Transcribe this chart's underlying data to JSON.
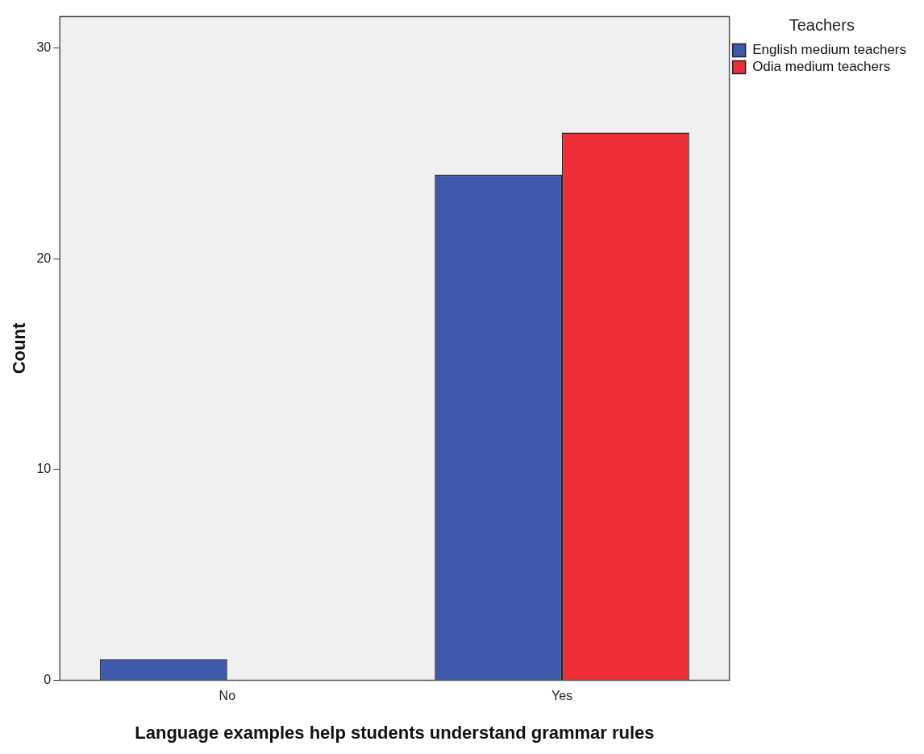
{
  "chart_data": {
    "type": "bar",
    "xlabel": "Language examples help students understand grammar rules",
    "ylabel": "Count",
    "legend_title": "Teachers",
    "categories": [
      "No",
      "Yes"
    ],
    "series": [
      {
        "name": "English medium teachers",
        "color": "#3e58ac",
        "values": [
          1,
          24
        ]
      },
      {
        "name": "Odia medium teachers",
        "color": "#ee2e37",
        "values": [
          0,
          26
        ]
      }
    ],
    "ylim": [
      0,
      31.5
    ],
    "yticks": [
      0,
      10,
      20,
      30
    ],
    "legend": "top right"
  }
}
